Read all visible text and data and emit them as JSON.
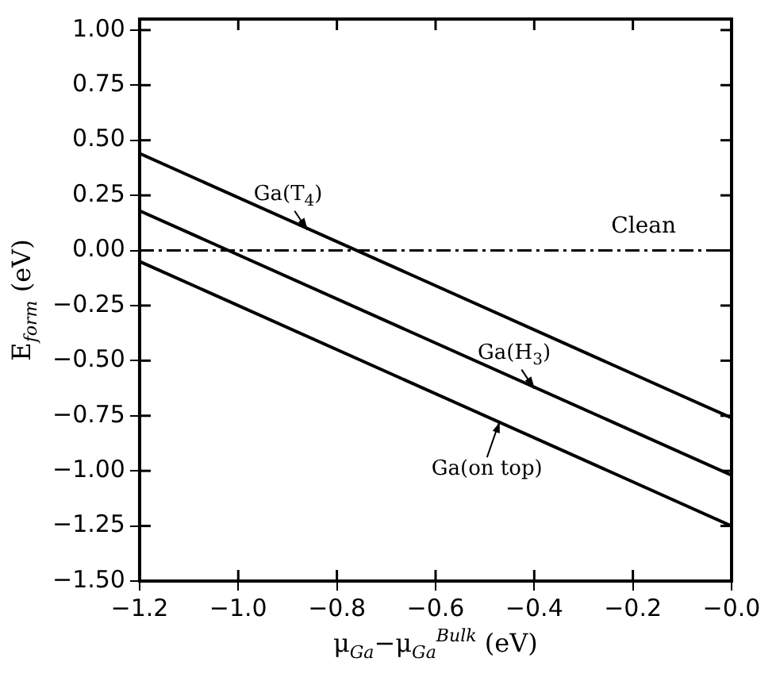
{
  "chart_data": {
    "type": "line",
    "xlabel": "μ$_{Ga}$−μ$_{Ga}$$^{Bulk}$ (eV)",
    "ylabel": "E$_{form}$ (eV)",
    "x": [
      -1.2,
      0
    ],
    "series": [
      {
        "color": "#000000",
        "values": [
          0.44,
          -0.76
        ]
      },
      {
        "color": "#000000",
        "values": [
          0.18,
          -1.02
        ]
      },
      {
        "color": "#000000",
        "values": [
          -0.05,
          -1.25
        ]
      }
    ],
    "xlim": [
      -1.2,
      0
    ],
    "xticks": [
      {
        "value": -1.2,
        "label": "−1.2"
      },
      {
        "value": -1,
        "label": "−1.0"
      },
      {
        "value": -0.8,
        "label": "−0.8"
      },
      {
        "value": -0.6,
        "label": "−0.6"
      },
      {
        "value": -0.4,
        "label": "−0.4"
      },
      {
        "value": -0.2,
        "label": "−0.2"
      },
      {
        "value": 0,
        "label": "−0.0"
      }
    ],
    "ylim": [
      -1.5,
      1.05
    ],
    "yticks": [
      {
        "value": -1.5,
        "label": "−1.50"
      },
      {
        "value": -1.25,
        "label": "−1.25"
      },
      {
        "value": -1,
        "label": "−1.00"
      },
      {
        "value": -0.75,
        "label": "−0.75"
      },
      {
        "value": -0.5,
        "label": "−0.50"
      },
      {
        "value": -0.25,
        "label": "−0.25"
      },
      {
        "value": 0,
        "label": "0.00"
      },
      {
        "value": 0.25,
        "label": "0.25"
      },
      {
        "value": 0.5,
        "label": "0.50"
      },
      {
        "value": 0.75,
        "label": "0.75"
      },
      {
        "value": 1,
        "label": "1.00"
      }
    ],
    "ref_lines": [
      {
        "axis": "y",
        "value": 0,
        "label": "Clean",
        "color": "#000000",
        "line_style": "dashed"
      }
    ],
    "annotations": [
      {
        "text": "Ga(T$_{4}$)",
        "x": -0.86,
        "y": 0.1
      },
      {
        "text": "Ga(H$_{3}$)",
        "x": -0.4,
        "y": -0.62
      },
      {
        "text": "Ga(on top)",
        "x": -0.47,
        "y": -0.78
      }
    ],
    "grid": false,
    "legend": false,
    "marker": "none",
    "line_style": "solid"
  }
}
